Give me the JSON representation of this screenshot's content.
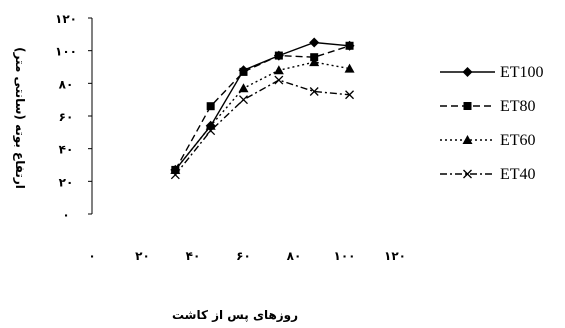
{
  "chart_data": {
    "type": "line",
    "xlabel": "روزهای پس از کاشت",
    "ylabel": "ارتفاع بوته (سانتی متر)",
    "xlim": [
      0,
      120
    ],
    "ylim": [
      0,
      120
    ],
    "x_ticks": [
      {
        "value": 0,
        "label": "۰"
      },
      {
        "value": 20,
        "label": "۲۰"
      },
      {
        "value": 40,
        "label": "۴۰"
      },
      {
        "value": 60,
        "label": "۶۰"
      },
      {
        "value": 80,
        "label": "۸۰"
      },
      {
        "value": 100,
        "label": "۱۰۰"
      },
      {
        "value": 120,
        "label": "۱۲۰"
      }
    ],
    "y_ticks": [
      {
        "value": 0,
        "label": "۰"
      },
      {
        "value": 20,
        "label": "۲۰"
      },
      {
        "value": 40,
        "label": "۴۰"
      },
      {
        "value": 60,
        "label": "۶۰"
      },
      {
        "value": 80,
        "label": "۸۰"
      },
      {
        "value": 100,
        "label": "۱۰۰"
      },
      {
        "value": 120,
        "label": "۱۲۰"
      }
    ],
    "grid": false,
    "legend_position": "right",
    "series": [
      {
        "name": "ET100",
        "marker": "diamond",
        "dash": "solid",
        "x": [
          33,
          47,
          60,
          74,
          88,
          102
        ],
        "y": [
          27,
          54,
          88,
          97,
          105,
          103
        ]
      },
      {
        "name": "ET80",
        "marker": "square",
        "dash": "dashed",
        "x": [
          33,
          47,
          60,
          74,
          88,
          102
        ],
        "y": [
          27,
          66,
          87,
          97,
          96,
          103
        ]
      },
      {
        "name": "ET60",
        "marker": "triangle",
        "dash": "dotted",
        "x": [
          33,
          47,
          60,
          74,
          88,
          102
        ],
        "y": [
          27,
          54,
          77,
          88,
          93,
          89
        ]
      },
      {
        "name": "ET40",
        "marker": "x",
        "dash": "dashdot",
        "x": [
          33,
          47,
          60,
          74,
          88,
          102
        ],
        "y": [
          24,
          51,
          70,
          82,
          75,
          73
        ]
      }
    ]
  }
}
